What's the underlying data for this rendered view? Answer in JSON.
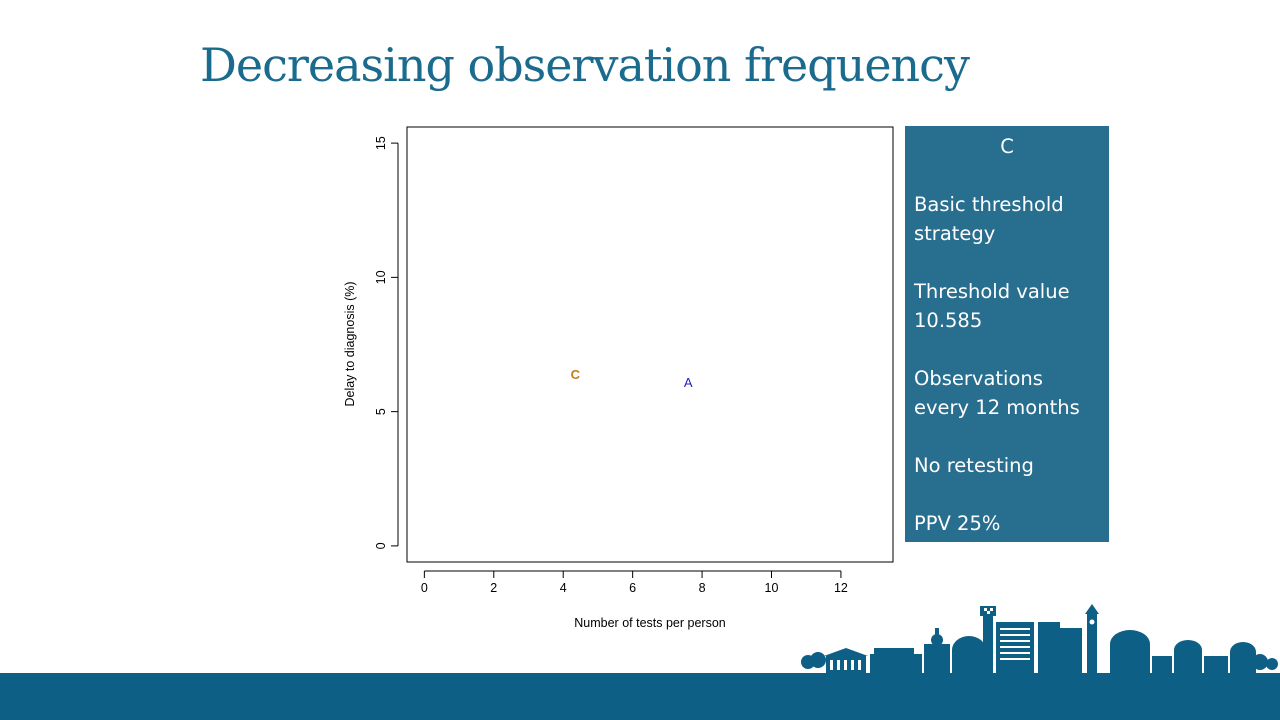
{
  "slide": {
    "title": "Decreasing observation frequency"
  },
  "panel": {
    "heading": "C",
    "lines": [
      "Basic threshold strategy",
      "Threshold value 10.585",
      "Observations every 12 months",
      "No retesting",
      "PPV 25%"
    ],
    "background_color": "#286e8f"
  },
  "chart_data": {
    "type": "scatter",
    "xlabel": "Number of tests per person",
    "ylabel": "Delay to diagnosis (%)",
    "xlim": [
      -0.5,
      13.5
    ],
    "ylim": [
      -0.6,
      15.6
    ],
    "x_ticks": [
      0,
      2,
      4,
      6,
      8,
      10,
      12
    ],
    "y_ticks": [
      0,
      5,
      10,
      15
    ],
    "grid": false,
    "legend": "none",
    "points": [
      {
        "label": "C",
        "x": 4.35,
        "y": 6.4,
        "color": "#c47c1a"
      },
      {
        "label": "A",
        "x": 7.6,
        "y": 6.1,
        "color": "#1f1fbf"
      }
    ]
  },
  "footer": {
    "color": "#0e5f86",
    "skyline_icon": "city-skyline-icon"
  }
}
